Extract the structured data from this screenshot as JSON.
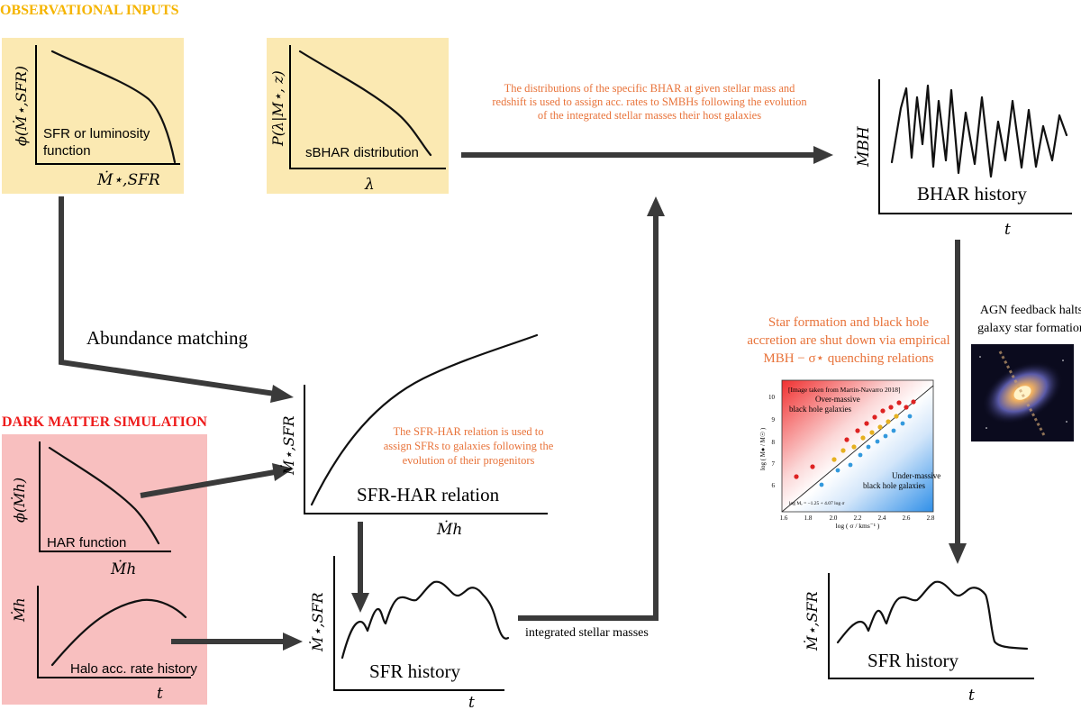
{
  "headings": {
    "observational": "OBSERVATIONAL INPUTS",
    "dark_matter": "DARK MATTER SIMULATION"
  },
  "panels": {
    "sfr_function": {
      "label_line1": "SFR or luminosity",
      "label_line2": "function",
      "ylabel": "ϕ(Ṁ⋆,SFR)",
      "xlabel": "Ṁ⋆,SFR"
    },
    "sbhar": {
      "label": "sBHAR distribution",
      "ylabel": "P(λ|M⋆, z)",
      "xlabel": "λ"
    },
    "bhar_history": {
      "label": "BHAR history",
      "ylabel": "ṀBH",
      "xlabel": "t"
    },
    "har_function": {
      "label": "HAR function",
      "ylabel": "ϕ(Ṁh)",
      "xlabel": "Ṁh"
    },
    "halo_history": {
      "label": "Halo acc. rate history",
      "ylabel": "Ṁh",
      "xlabel": "t"
    },
    "sfr_har": {
      "label": "SFR-HAR relation",
      "ylabel": "Ṁ⋆,SFR",
      "xlabel": "Ṁh"
    },
    "sfr_history_mid": {
      "label": "SFR history",
      "ylabel": "Ṁ⋆,SFR",
      "xlabel": "t"
    },
    "sfr_history_right": {
      "label": "SFR history",
      "ylabel": "Ṁ⋆,SFR",
      "xlabel": "t"
    }
  },
  "annotations": {
    "abundance_matching": "Abundance matching",
    "sbhar_note": [
      "The distributions of the specific BHAR at given stellar mass and",
      "redshift is used to assign acc. rates to SMBHs following the evolution",
      "of the integrated stellar masses their host galaxies"
    ],
    "sfr_har_note": [
      "The SFR-HAR relation is used to",
      "assign SFRs to galaxies following the",
      "evolution of their progenitors"
    ],
    "quenching_note": [
      "Star formation and black hole",
      "accretion are shut down via empirical",
      "MBH − σ⋆ quenching relations"
    ],
    "agn_feedback": [
      "AGN feedback halts",
      "galaxy star formation"
    ],
    "integrated_masses": "integrated stellar masses"
  },
  "inset": {
    "caption": "[Image taken from Martin-Navarro 2018]",
    "over_massive": [
      "Over-massive",
      "black hole galaxies"
    ],
    "under_massive": [
      "Under-massive",
      "black hole galaxies"
    ],
    "fit_label": "log Mₑ = −1.25 + 4.07 log σ",
    "xlabel": "log ( σ / kms⁻¹ )",
    "ylabel": "log ( M● / M☉ )",
    "xticks": [
      "1.6",
      "1.8",
      "2.0",
      "2.2",
      "2.4",
      "2.6",
      "2.8"
    ],
    "yticks": [
      "6",
      "7",
      "8",
      "9",
      "10"
    ]
  },
  "colors": {
    "observational_box": "#fbe9b2",
    "dark_matter_box": "#f8bfbf",
    "heading_orange": "#f5b400",
    "heading_red": "#ee1c1c",
    "note_orange": "#e8733a"
  }
}
